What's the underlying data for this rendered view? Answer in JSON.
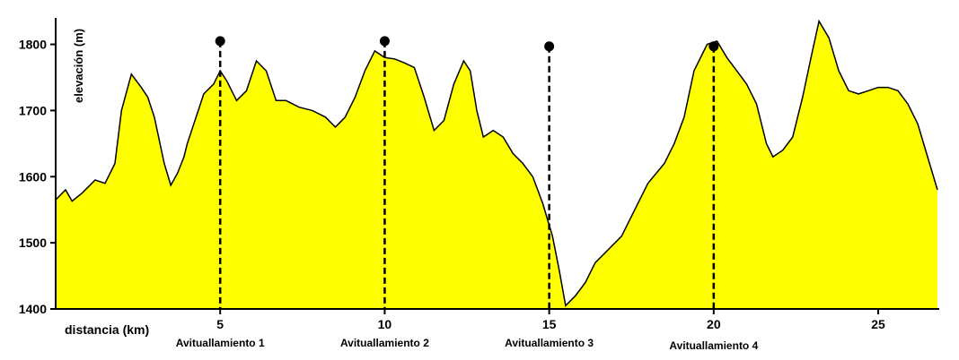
{
  "chart_data": {
    "type": "area",
    "title": "",
    "xlabel": "distancia (km)",
    "ylabel": "elevación (m)",
    "xlim": [
      0,
      26.8
    ],
    "ylim": [
      1400,
      1840
    ],
    "x_ticks": [
      5,
      10,
      15,
      20,
      25
    ],
    "y_ticks": [
      1400,
      1500,
      1600,
      1700,
      1800
    ],
    "fill_color": "#ffff00",
    "line_color": "#000000",
    "grid": false,
    "series": [
      {
        "x": [
          0,
          0.3,
          0.5,
          0.8,
          1.2,
          1.5,
          1.8,
          2.0,
          2.3,
          2.6,
          2.8,
          3.0,
          3.3,
          3.5,
          3.7,
          3.9,
          4.0,
          4.2,
          4.5,
          4.8,
          5.0,
          5.2,
          5.5,
          5.8,
          6.1,
          6.4,
          6.7,
          7.0,
          7.4,
          7.8,
          8.2,
          8.5,
          8.8,
          9.1,
          9.4,
          9.7,
          10.0,
          10.3,
          10.6,
          10.9,
          11.2,
          11.5,
          11.8,
          12.1,
          12.4,
          12.6,
          12.8,
          13.0,
          13.3,
          13.6,
          13.9,
          14.2,
          14.5,
          14.8,
          15.1,
          15.3,
          15.5,
          15.8,
          16.1,
          16.4,
          16.8,
          17.2,
          17.6,
          18.0,
          18.5,
          18.8,
          19.1,
          19.4,
          19.8,
          20.1,
          20.4,
          20.7,
          21.0,
          21.3,
          21.6,
          21.8,
          22.1,
          22.4,
          22.7,
          23.0,
          23.2,
          23.5,
          23.8,
          24.1,
          24.4,
          24.7,
          25.0,
          25.3,
          25.6,
          25.9,
          26.2,
          26.5,
          26.8
        ],
        "y": [
          1565,
          1580,
          1563,
          1575,
          1595,
          1590,
          1620,
          1700,
          1755,
          1735,
          1720,
          1690,
          1620,
          1587,
          1605,
          1630,
          1650,
          1680,
          1725,
          1740,
          1760,
          1745,
          1715,
          1730,
          1775,
          1760,
          1715,
          1715,
          1705,
          1700,
          1690,
          1675,
          1690,
          1720,
          1760,
          1790,
          1780,
          1778,
          1772,
          1765,
          1720,
          1670,
          1685,
          1740,
          1775,
          1760,
          1700,
          1660,
          1670,
          1660,
          1635,
          1620,
          1600,
          1560,
          1510,
          1460,
          1405,
          1420,
          1440,
          1470,
          1490,
          1510,
          1550,
          1590,
          1620,
          1650,
          1690,
          1760,
          1800,
          1805,
          1780,
          1760,
          1740,
          1710,
          1650,
          1630,
          1640,
          1660,
          1720,
          1790,
          1835,
          1810,
          1760,
          1730,
          1725,
          1730,
          1735,
          1735,
          1730,
          1710,
          1680,
          1630,
          1580
        ]
      }
    ],
    "aid_stations": [
      {
        "km": 5,
        "label": "Avituallamiento 1",
        "marker_elev": 1805
      },
      {
        "km": 10,
        "label": "Avituallamiento 2",
        "marker_elev": 1805
      },
      {
        "km": 15,
        "label": "Avituallamiento 3",
        "marker_elev": 1797
      },
      {
        "km": 20,
        "label": "Avituallamiento 4",
        "marker_elev": 1797
      }
    ]
  }
}
